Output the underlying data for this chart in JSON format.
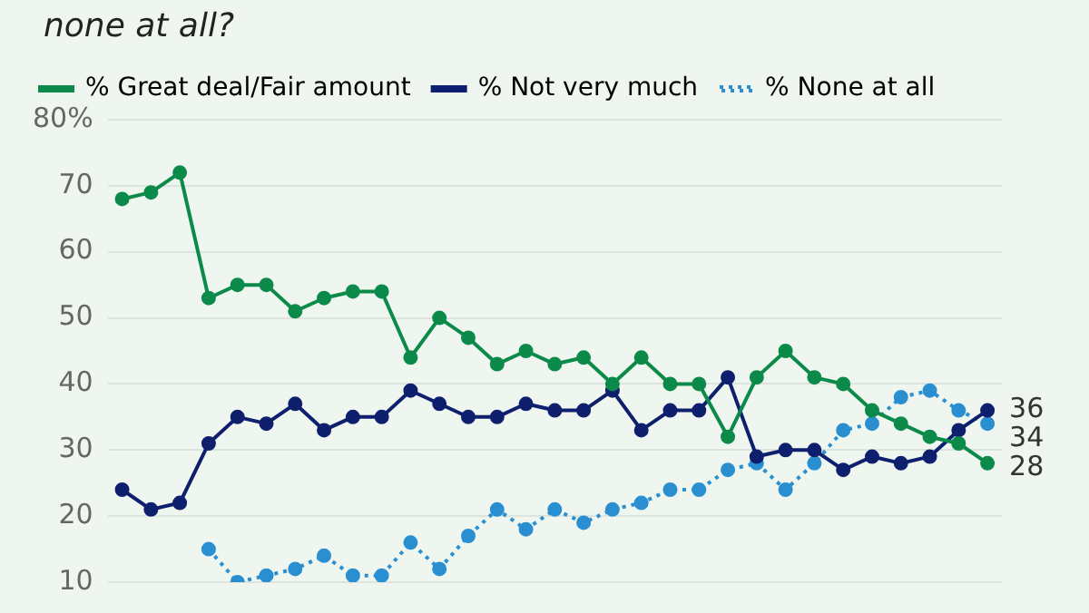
{
  "chart_data": {
    "type": "line",
    "title": "none at all?",
    "categories": [
      null,
      null,
      null,
      null,
      null,
      null,
      null,
      null,
      null,
      null,
      null,
      null,
      null,
      null,
      null,
      null,
      null,
      null,
      null,
      null,
      null,
      null,
      null,
      null,
      null,
      null,
      null,
      null,
      null,
      null,
      null
    ],
    "series": [
      {
        "name": "% Great deal/Fair amount",
        "color": "#0b8a4a",
        "values": [
          68,
          69,
          72,
          53,
          55,
          55,
          51,
          53,
          54,
          54,
          44,
          50,
          47,
          43,
          45,
          43,
          44,
          40,
          44,
          40,
          40,
          32,
          41,
          45,
          41,
          40,
          36,
          34,
          32,
          31,
          28
        ]
      },
      {
        "name": "% Not very much",
        "color": "#0e1f6e",
        "values": [
          24,
          21,
          22,
          31,
          35,
          34,
          37,
          33,
          35,
          35,
          39,
          37,
          35,
          35,
          37,
          36,
          36,
          39,
          33,
          36,
          36,
          41,
          29,
          30,
          30,
          27,
          29,
          28,
          29,
          33,
          36
        ]
      },
      {
        "name": "% None at all",
        "color": "#2a8fd0",
        "line_style": "dotted",
        "values": [
          null,
          null,
          null,
          15,
          10,
          11,
          12,
          14,
          11,
          11,
          16,
          12,
          17,
          21,
          18,
          21,
          19,
          21,
          22,
          24,
          24,
          27,
          28,
          24,
          28,
          33,
          34,
          38,
          39,
          36,
          34
        ]
      }
    ],
    "ylim": [
      10,
      80
    ],
    "yticks": [
      10,
      20,
      30,
      40,
      50,
      60,
      70,
      {
        "value": 80,
        "label": "80%"
      }
    ],
    "grid": "y",
    "legend": "top left",
    "marker": "circle",
    "line_style": "solid",
    "tick_labels": "y",
    "annotations": [
      "36",
      "34",
      "28"
    ]
  }
}
